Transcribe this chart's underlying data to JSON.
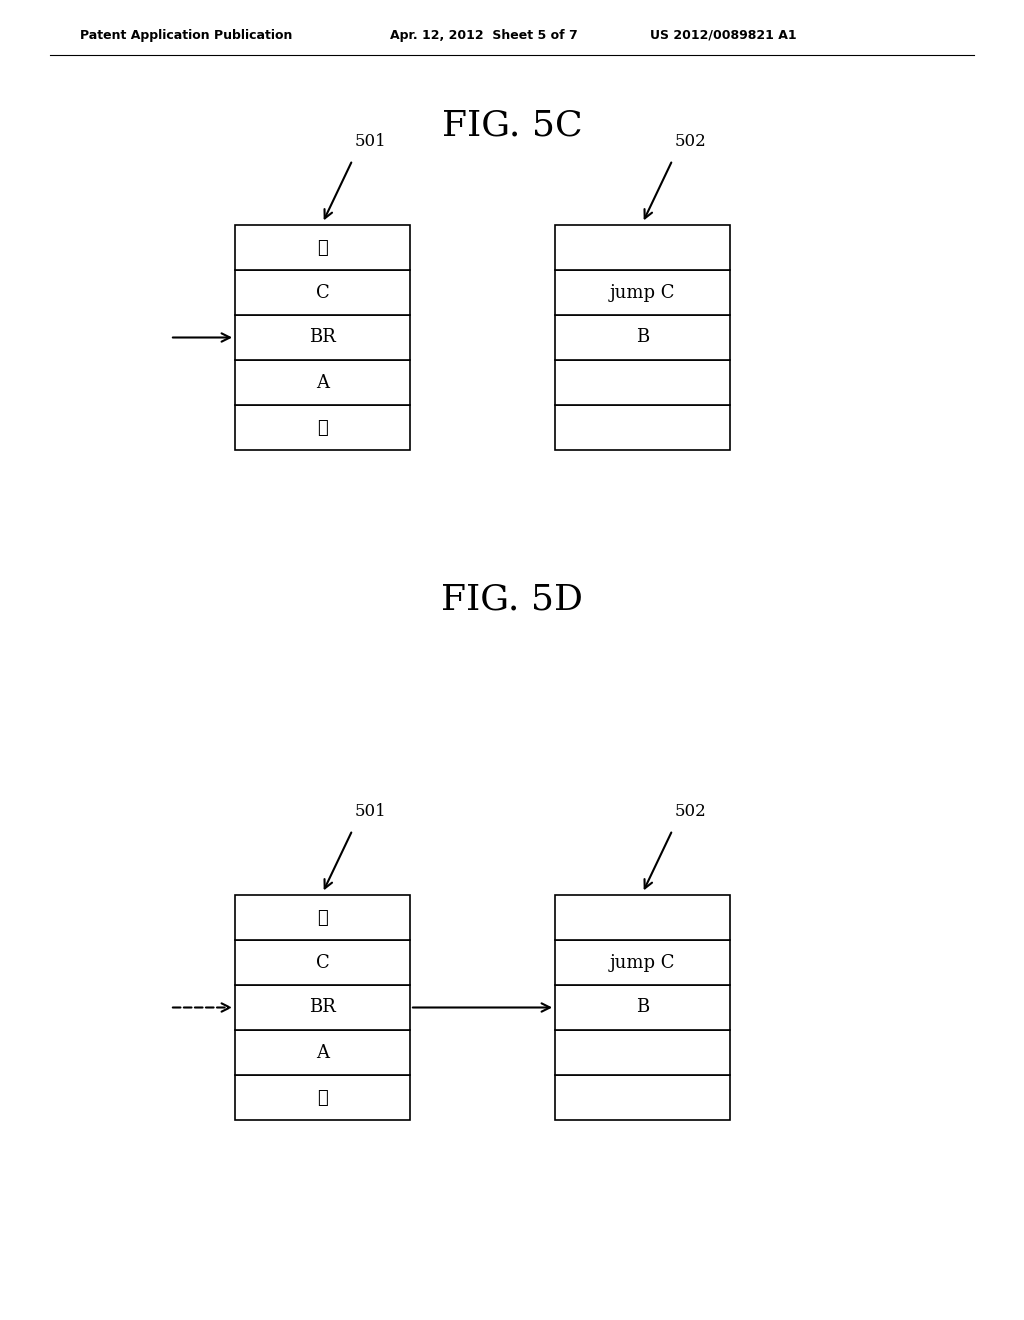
{
  "background_color": "#ffffff",
  "header_left": "Patent Application Publication",
  "header_mid": "Apr. 12, 2012  Sheet 5 of 7",
  "header_right": "US 2012/0089821 A1",
  "fig5c_title": "FIG. 5C",
  "fig5d_title": "FIG. 5D",
  "label_501": "501",
  "label_502": "502",
  "box1_left_rows": [
    "⋮",
    "A",
    "BR",
    "C",
    "⋮"
  ],
  "box2_right_rows": [
    "",
    "",
    "B",
    "jump C",
    ""
  ],
  "text_fontsize": 13,
  "title_fontsize": 26,
  "header_fontsize": 9,
  "label_fontsize": 12
}
